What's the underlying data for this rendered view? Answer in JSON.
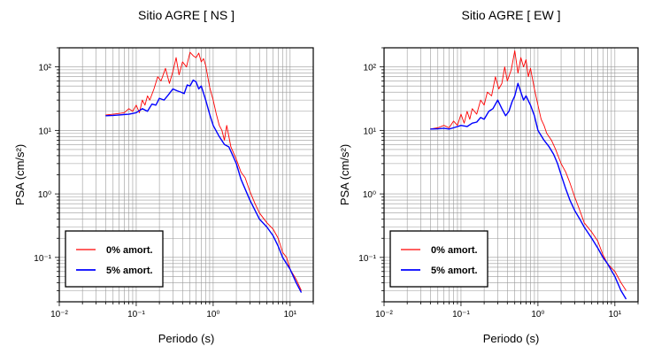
{
  "chart_data": [
    {
      "type": "line",
      "title": "Sitio AGRE [ NS ]",
      "xlabel": "Periodo (s)",
      "ylabel": "PSA (cm/s²)",
      "xscale": "log",
      "yscale": "log",
      "xlim": [
        0.01,
        20
      ],
      "ylim": [
        0.02,
        200
      ],
      "grid": true,
      "legend_position": "bottom-left",
      "x_tick_labels": [
        "10⁻²",
        "10⁻¹",
        "10⁰",
        "10¹"
      ],
      "y_tick_labels": [
        "10⁻¹",
        "10⁰",
        "10¹",
        "10²"
      ],
      "series": [
        {
          "name": "0% amort.",
          "color": "#ff0000",
          "x": [
            0.04,
            0.05,
            0.06,
            0.07,
            0.08,
            0.09,
            0.1,
            0.11,
            0.12,
            0.13,
            0.14,
            0.15,
            0.17,
            0.19,
            0.21,
            0.24,
            0.27,
            0.3,
            0.33,
            0.36,
            0.4,
            0.45,
            0.5,
            0.55,
            0.6,
            0.65,
            0.7,
            0.75,
            0.8,
            0.9,
            1.0,
            1.1,
            1.2,
            1.3,
            1.4,
            1.5,
            1.7,
            2.0,
            2.3,
            2.6,
            3.0,
            3.5,
            4.0,
            5.0,
            6.0,
            7.0,
            8.0,
            9.0,
            10.0,
            12.0,
            14.0
          ],
          "y": [
            17.5,
            18,
            18.5,
            19,
            22,
            20,
            25,
            19,
            30,
            25,
            35,
            30,
            45,
            70,
            60,
            95,
            55,
            85,
            140,
            75,
            120,
            100,
            170,
            150,
            140,
            165,
            120,
            135,
            105,
            48,
            30,
            18,
            12,
            10,
            7,
            12,
            5.5,
            3.5,
            2.2,
            1.8,
            1.1,
            0.7,
            0.5,
            0.35,
            0.28,
            0.2,
            0.12,
            0.1,
            0.065,
            0.045,
            0.03
          ]
        },
        {
          "name": "5% amort.",
          "color": "#0000ff",
          "x": [
            0.04,
            0.05,
            0.06,
            0.07,
            0.08,
            0.09,
            0.1,
            0.12,
            0.14,
            0.16,
            0.18,
            0.2,
            0.23,
            0.26,
            0.3,
            0.34,
            0.38,
            0.42,
            0.46,
            0.5,
            0.55,
            0.6,
            0.65,
            0.7,
            0.8,
            0.9,
            1.0,
            1.2,
            1.4,
            1.6,
            1.8,
            2.0,
            2.3,
            2.6,
            3.0,
            3.5,
            4.0,
            5.0,
            6.0,
            7.0,
            8.0,
            10.0,
            12.0,
            14.0
          ],
          "y": [
            17,
            17.2,
            17.5,
            17.8,
            18,
            18.5,
            19,
            22,
            20,
            26,
            25,
            32,
            30,
            36,
            45,
            42,
            40,
            38,
            52,
            50,
            62,
            58,
            45,
            50,
            30,
            18,
            12,
            8,
            6,
            5.5,
            4,
            3,
            1.7,
            1.2,
            0.8,
            0.55,
            0.4,
            0.3,
            0.22,
            0.15,
            0.1,
            0.065,
            0.04,
            0.028
          ]
        }
      ]
    },
    {
      "type": "line",
      "title": "Sitio AGRE [ EW ]",
      "xlabel": "Periodo (s)",
      "ylabel": "PSA (cm/s²)",
      "xscale": "log",
      "yscale": "log",
      "xlim": [
        0.01,
        20
      ],
      "ylim": [
        0.02,
        200
      ],
      "grid": true,
      "legend_position": "bottom-left",
      "x_tick_labels": [
        "10⁻²",
        "10⁻¹",
        "10⁰",
        "10¹"
      ],
      "y_tick_labels": [
        "10⁻¹",
        "10⁰",
        "10¹",
        "10²"
      ],
      "series": [
        {
          "name": "0% amort.",
          "color": "#ff0000",
          "x": [
            0.04,
            0.05,
            0.06,
            0.07,
            0.08,
            0.09,
            0.1,
            0.11,
            0.12,
            0.13,
            0.14,
            0.16,
            0.18,
            0.2,
            0.22,
            0.25,
            0.28,
            0.31,
            0.34,
            0.37,
            0.4,
            0.45,
            0.5,
            0.55,
            0.6,
            0.65,
            0.7,
            0.75,
            0.8,
            0.9,
            1.0,
            1.1,
            1.2,
            1.3,
            1.5,
            1.7,
            2.0,
            2.3,
            2.6,
            3.0,
            3.5,
            4.0,
            5.0,
            6.0,
            7.0,
            8.0,
            10.0,
            12.0,
            14.0
          ],
          "y": [
            10.5,
            11,
            12,
            11,
            14,
            12,
            18,
            13,
            20,
            15,
            22,
            18,
            30,
            25,
            40,
            35,
            70,
            45,
            55,
            100,
            60,
            90,
            180,
            80,
            140,
            100,
            130,
            70,
            95,
            45,
            25,
            15,
            12,
            9,
            7,
            5,
            3,
            2.2,
            1.5,
            0.9,
            0.55,
            0.35,
            0.25,
            0.18,
            0.11,
            0.08,
            0.06,
            0.04,
            0.03
          ]
        },
        {
          "name": "5% amort.",
          "color": "#0000ff",
          "x": [
            0.04,
            0.05,
            0.06,
            0.07,
            0.08,
            0.09,
            0.1,
            0.12,
            0.14,
            0.16,
            0.18,
            0.2,
            0.23,
            0.26,
            0.3,
            0.34,
            0.38,
            0.42,
            0.46,
            0.5,
            0.55,
            0.6,
            0.65,
            0.7,
            0.8,
            0.9,
            1.0,
            1.2,
            1.4,
            1.6,
            1.8,
            2.0,
            2.3,
            2.6,
            3.0,
            3.5,
            4.0,
            5.0,
            6.0,
            7.0,
            8.0,
            10.0,
            12.0,
            14.0
          ],
          "y": [
            10.5,
            10.6,
            10.8,
            10.5,
            11,
            11.5,
            12,
            11.5,
            13,
            13.5,
            16,
            15,
            20,
            22,
            30,
            22,
            17,
            20,
            28,
            35,
            55,
            40,
            30,
            35,
            25,
            17,
            10,
            7,
            5.5,
            4.2,
            3,
            2,
            1.2,
            0.8,
            0.55,
            0.4,
            0.3,
            0.2,
            0.14,
            0.1,
            0.08,
            0.05,
            0.03,
            0.022
          ]
        }
      ]
    }
  ]
}
